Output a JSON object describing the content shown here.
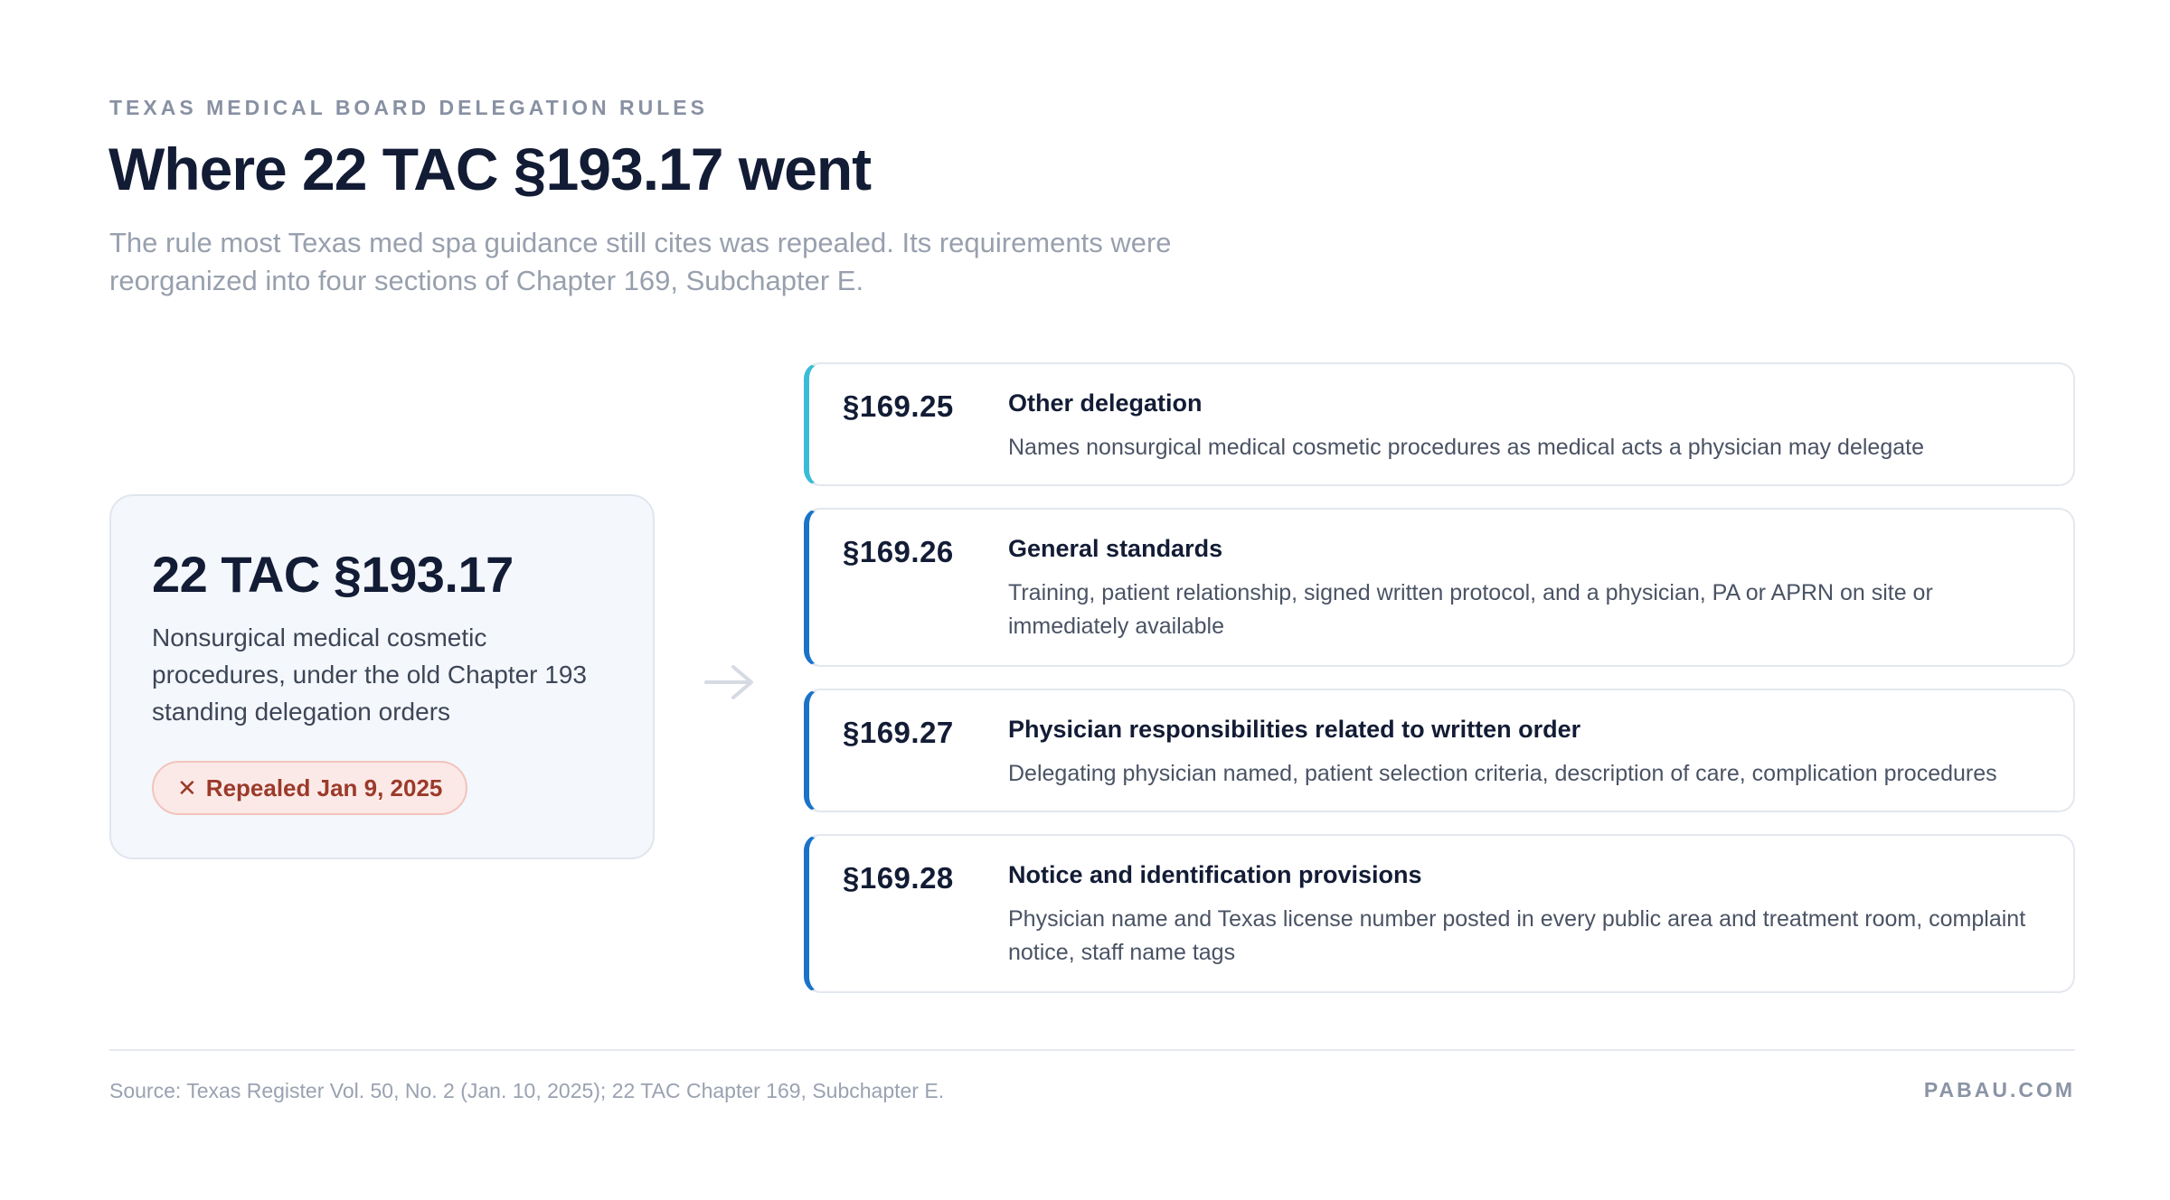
{
  "header": {
    "eyebrow": "TEXAS MEDICAL BOARD DELEGATION RULES",
    "title": "Where 22 TAC §193.17 went",
    "subtitle": "The rule most Texas med spa guidance still cites was repealed. Its requirements were reorganized into four sections of Chapter 169, Subchapter E."
  },
  "source_rule": {
    "code": "22 TAC §193.17",
    "description": "Nonsurgical medical cosmetic procedures, under the old Chapter 193 standing delegation orders",
    "badge_icon": "✕",
    "badge_label": "Repealed Jan 9, 2025"
  },
  "arrow_icon": "arrow-right-icon",
  "sections": [
    {
      "code": "§169.25",
      "name": "Other delegation",
      "description": "Names nonsurgical medical cosmetic procedures as medical acts a physician may delegate"
    },
    {
      "code": "§169.26",
      "name": "General standards",
      "description": "Training, patient relationship, signed written protocol, and a physician, PA or APRN on site or immediately available"
    },
    {
      "code": "§169.27",
      "name": "Physician responsibilities related to written order",
      "description": "Delegating physician named, patient selection criteria, description of care, complication procedures"
    },
    {
      "code": "§169.28",
      "name": "Notice and identification provisions",
      "description": "Physician name and Texas license number posted in every public area and treatment room, complaint notice, staff name tags"
    }
  ],
  "colors": {
    "accent_first": "#3bbbd8",
    "accent": "#1a73c9",
    "badge_text": "#9b3a2a",
    "badge_bg": "#fbe9e7"
  },
  "footer": {
    "source": "Source: Texas Register Vol. 50, No. 2 (Jan. 10, 2025); 22 TAC Chapter 169, Subchapter E.",
    "brand": "PABAU.COM"
  }
}
